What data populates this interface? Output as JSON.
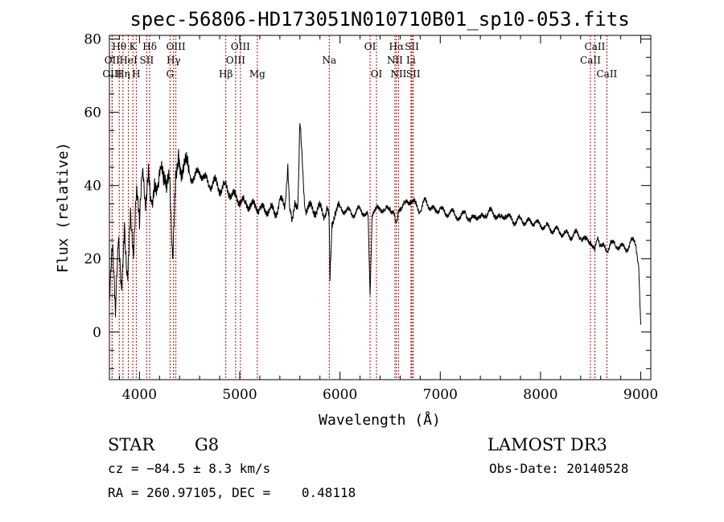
{
  "chart_data": {
    "type": "line",
    "title": "spec-56806-HD173051N010710B01_sp10-053.fits",
    "xlabel": "Wavelength (Å)",
    "ylabel": "Flux (relative)",
    "xlim": [
      3700,
      9100
    ],
    "ylim": [
      -13,
      81
    ],
    "xticks": [
      4000,
      5000,
      6000,
      7000,
      8000,
      9000
    ],
    "yticks": [
      0,
      20,
      40,
      60,
      80
    ],
    "series": [
      {
        "name": "spectrum",
        "x": [
          3700,
          3730,
          3760,
          3790,
          3820,
          3850,
          3880,
          3910,
          3940,
          3970,
          4000,
          4030,
          4060,
          4090,
          4120,
          4150,
          4180,
          4210,
          4240,
          4270,
          4300,
          4330,
          4360,
          4390,
          4420,
          4450,
          4500,
          4550,
          4600,
          4650,
          4700,
          4750,
          4800,
          4850,
          4900,
          4950,
          5000,
          5050,
          5100,
          5150,
          5200,
          5250,
          5300,
          5350,
          5400,
          5450,
          5480,
          5500,
          5520,
          5550,
          5580,
          5600,
          5650,
          5700,
          5750,
          5800,
          5850,
          5890,
          5900,
          5920,
          5950,
          6000,
          6050,
          6100,
          6150,
          6200,
          6250,
          6280,
          6300,
          6320,
          6350,
          6400,
          6450,
          6500,
          6563,
          6600,
          6650,
          6700,
          6750,
          6800,
          6850,
          6900,
          6950,
          7000,
          7050,
          7100,
          7150,
          7200,
          7250,
          7300,
          7350,
          7400,
          7450,
          7500,
          7550,
          7600,
          7650,
          7700,
          7750,
          7800,
          7850,
          7900,
          7950,
          8000,
          8050,
          8100,
          8150,
          8200,
          8250,
          8300,
          8350,
          8400,
          8450,
          8500,
          8542,
          8560,
          8600,
          8662,
          8700,
          8750,
          8800,
          8850,
          8900,
          8950,
          8980,
          9000
        ],
        "y": [
          8,
          22,
          4,
          25,
          12,
          30,
          16,
          34,
          20,
          38,
          28,
          44,
          33,
          46,
          36,
          42,
          39,
          45,
          40,
          38,
          42,
          20,
          44,
          50,
          44,
          46,
          43,
          42,
          44,
          42,
          40,
          41,
          39,
          40,
          38,
          37,
          36,
          35,
          35,
          34,
          34,
          33,
          34,
          32,
          36,
          34,
          46,
          33,
          30,
          36,
          35,
          57,
          34,
          34,
          33,
          34,
          32,
          33,
          14,
          30,
          33,
          34,
          33,
          33,
          32,
          34,
          32,
          32,
          10,
          32,
          33,
          34,
          33,
          34,
          30,
          34,
          35,
          36,
          35,
          33,
          36,
          34,
          33,
          34,
          32,
          33,
          32,
          31,
          33,
          30,
          32,
          31,
          32,
          33,
          32,
          31,
          32,
          31,
          30,
          31,
          30,
          30,
          30,
          29,
          29,
          28,
          28,
          27,
          27,
          26,
          27,
          26,
          25,
          25,
          22,
          25,
          24,
          22,
          25,
          23,
          24,
          22,
          25,
          24,
          18,
          2
        ]
      }
    ],
    "lines": [
      {
        "name": "Hθ",
        "wavelength": 3798,
        "row": 1
      },
      {
        "name": "OII",
        "wavelength": 3727,
        "row": 2
      },
      {
        "name": "OIII",
        "wavelength": 3727,
        "row": 3
      },
      {
        "name": "K",
        "wavelength": 3934,
        "row": 1
      },
      {
        "name": "HeI",
        "wavelength": 3889,
        "row": 2
      },
      {
        "name": "Hη",
        "wavelength": 3835,
        "row": 3
      },
      {
        "name": "Hδ",
        "wavelength": 4102,
        "row": 1
      },
      {
        "name": "SII",
        "wavelength": 4072,
        "row": 2
      },
      {
        "name": "H",
        "wavelength": 3968,
        "row": 3
      },
      {
        "name": "OIII",
        "wavelength": 4363,
        "row": 1
      },
      {
        "name": "Hγ",
        "wavelength": 4340,
        "row": 2
      },
      {
        "name": "G",
        "wavelength": 4305,
        "row": 3
      },
      {
        "name": "OIII",
        "wavelength": 5007,
        "row": 1
      },
      {
        "name": "OIII",
        "wavelength": 4959,
        "row": 2
      },
      {
        "name": "Hβ",
        "wavelength": 4861,
        "row": 3
      },
      {
        "name": "Mg",
        "wavelength": 5175,
        "row": 3
      },
      {
        "name": "Na",
        "wavelength": 5893,
        "row": 2
      },
      {
        "name": "OI",
        "wavelength": 6300,
        "row": 1
      },
      {
        "name": "OI",
        "wavelength": 6364,
        "row": 3
      },
      {
        "name": "Hα",
        "wavelength": 6563,
        "row": 1
      },
      {
        "name": "SII",
        "wavelength": 6717,
        "row": 1
      },
      {
        "name": "NII",
        "wavelength": 6548,
        "row": 2
      },
      {
        "name": "Li",
        "wavelength": 6708,
        "row": 2
      },
      {
        "name": "NII",
        "wavelength": 6584,
        "row": 3
      },
      {
        "name": "SII",
        "wavelength": 6731,
        "row": 3
      },
      {
        "name": "CaII",
        "wavelength": 8542,
        "row": 1
      },
      {
        "name": "CaII",
        "wavelength": 8498,
        "row": 2
      },
      {
        "name": "CaII",
        "wavelength": 8662,
        "row": 3
      }
    ],
    "line_color": "#c00000"
  },
  "info": {
    "object_class": "STAR",
    "subclass": "G8",
    "survey": "LAMOST DR3",
    "cz": "cz = −84.5 ± 8.3 km/s",
    "obs_date": "Obs-Date: 20140528",
    "coords": "RA = 260.97105, DEC =    0.48118"
  }
}
